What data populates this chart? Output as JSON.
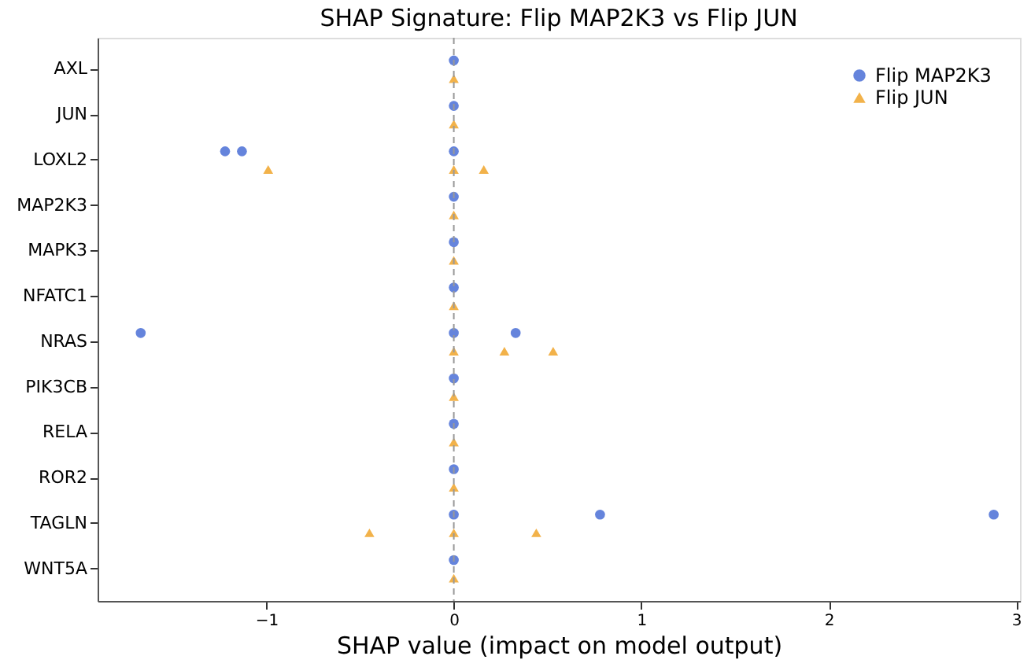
{
  "chart_data": {
    "type": "scatter",
    "orientation": "horizontal",
    "title": "SHAP Signature: Flip MAP2K3 vs Flip JUN",
    "xlabel": "SHAP value (impact on model output)",
    "categories": [
      "AXL",
      "JUN",
      "LOXL2",
      "MAP2K3",
      "MAPK3",
      "NFATC1",
      "NRAS",
      "PIK3CB",
      "RELA",
      "ROR2",
      "TAGLN",
      "WNT5A"
    ],
    "xlim": [
      -1.9,
      3.02
    ],
    "xticks": [
      -1,
      0,
      1,
      2,
      3
    ],
    "grid": false,
    "legend": "top right",
    "ref_lines": [
      {
        "axis": "x",
        "value": 0,
        "color": "#999999",
        "line_style": "dashed"
      }
    ],
    "series": [
      {
        "name": "Flip MAP2K3",
        "color": "#4a6fd6",
        "marker": "circle",
        "values": [
          0,
          0,
          0,
          0,
          0,
          0,
          0,
          0,
          0,
          0,
          0,
          0
        ]
      },
      {
        "color": "#4a6fd6",
        "marker": "circle",
        "values": [
          null,
          null,
          -1.22,
          null,
          null,
          null,
          -1.67,
          null,
          null,
          null,
          0.78,
          null
        ]
      },
      {
        "color": "#4a6fd6",
        "marker": "circle",
        "values": [
          null,
          null,
          -1.13,
          null,
          null,
          null,
          0.33,
          null,
          null,
          null,
          2.88,
          null
        ]
      },
      {
        "name": "Flip JUN",
        "color": "#f0a52a",
        "marker": "triangle",
        "values": [
          0,
          0,
          0,
          0,
          0,
          0,
          0,
          0,
          0,
          0,
          0,
          0
        ]
      },
      {
        "color": "#f0a52a",
        "marker": "triangle",
        "values": [
          null,
          null,
          -0.99,
          null,
          null,
          null,
          0.27,
          null,
          null,
          null,
          -0.45,
          null
        ]
      },
      {
        "color": "#f0a52a",
        "marker": "triangle",
        "values": [
          null,
          null,
          0.16,
          null,
          null,
          null,
          0.53,
          null,
          null,
          null,
          0.44,
          null
        ]
      }
    ]
  }
}
